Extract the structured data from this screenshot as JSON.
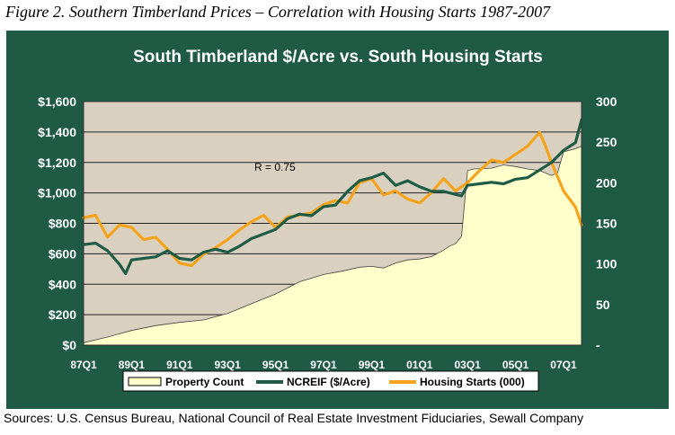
{
  "figure_caption": "Figure 2. Southern Timberland Prices – Correlation with Housing Starts 1987-2007",
  "sources": "Sources:  U.S. Census Bureau, National Council of Real Estate Investment Fiduciaries, Sewall Company",
  "colors": {
    "frame": "#1e5a44",
    "plot_bg": "#d9d0c0",
    "property_count_fill": "#ffffcc",
    "ncreif": "#1f5c46",
    "housing": "#f5a31b"
  },
  "chart_data": {
    "type": "line",
    "title": "South Timberland $/Acre vs. South Housing Starts",
    "annotation": "R = 0.75",
    "x_tick_labels": [
      "87Q1",
      "89Q1",
      "91Q1",
      "93Q1",
      "95Q1",
      "97Q1",
      "99Q1",
      "01Q1",
      "03Q1",
      "05Q1",
      "07Q1"
    ],
    "y_left": {
      "ticks": [
        "$0",
        "$200",
        "$400",
        "$600",
        "$800",
        "$1,000",
        "$1,200",
        "$1,400",
        "$1,600"
      ],
      "range": [
        0,
        1600
      ]
    },
    "y_right": {
      "ticks": [
        "-",
        "50",
        "100",
        "150",
        "200",
        "250",
        "300"
      ],
      "range": [
        0,
        300
      ]
    },
    "grid": true,
    "legend": [
      "Property Count",
      "NCREIF ($/Acre)",
      "Housing Starts (000)"
    ],
    "legend_position": "bottom",
    "series": [
      {
        "name": "Property Count",
        "kind": "area",
        "axis": "right",
        "x": [
          1987.0,
          1988.0,
          1989.0,
          1990.0,
          1991.0,
          1992.0,
          1993.0,
          1994.0,
          1995.0,
          1996.0,
          1997.0,
          1997.75,
          1998.5,
          1999.0,
          1999.5,
          2000.0,
          2000.5,
          2001.0,
          2001.5,
          2002.0,
          2002.25,
          2002.5,
          2002.75,
          2003.0,
          2003.25,
          2004.0,
          2004.5,
          2005.0,
          2005.5,
          2006.0,
          2006.5,
          2006.75,
          2007.0,
          2007.5,
          2007.75
        ],
        "y": [
          3,
          10,
          18,
          24,
          28,
          31,
          39,
          51,
          63,
          78,
          87,
          91,
          96,
          97,
          95,
          101,
          105,
          106,
          109,
          117,
          122,
          125,
          134,
          215,
          217,
          218,
          222,
          220,
          217,
          215,
          209,
          212,
          238,
          242,
          245
        ]
      },
      {
        "name": "NCREIF ($/Acre)",
        "kind": "line",
        "axis": "left",
        "x": [
          1987.0,
          1987.5,
          1988.0,
          1988.5,
          1988.75,
          1989.0,
          1989.5,
          1990.0,
          1990.5,
          1991.0,
          1991.5,
          1992.0,
          1992.5,
          1993.0,
          1993.5,
          1994.0,
          1994.5,
          1995.0,
          1995.5,
          1996.0,
          1996.5,
          1997.0,
          1997.5,
          1998.0,
          1998.5,
          1999.0,
          1999.5,
          2000.0,
          2000.5,
          2001.0,
          2001.5,
          2002.0,
          2002.5,
          2002.75,
          2003.0,
          2003.5,
          2004.0,
          2004.5,
          2005.0,
          2005.5,
          2006.0,
          2006.5,
          2007.0,
          2007.5,
          2007.75
        ],
        "y": [
          660,
          670,
          620,
          530,
          470,
          560,
          570,
          580,
          620,
          570,
          560,
          610,
          630,
          610,
          650,
          700,
          730,
          760,
          830,
          860,
          850,
          910,
          920,
          1010,
          1080,
          1100,
          1130,
          1050,
          1080,
          1040,
          1010,
          1010,
          990,
          980,
          1050,
          1060,
          1070,
          1060,
          1090,
          1100,
          1150,
          1200,
          1280,
          1330,
          1480
        ]
      },
      {
        "name": "Housing Starts (000)",
        "kind": "line",
        "axis": "right",
        "x": [
          1987.0,
          1987.5,
          1988.0,
          1988.5,
          1989.0,
          1989.5,
          1990.0,
          1990.5,
          1991.0,
          1991.5,
          1992.0,
          1992.5,
          1993.0,
          1993.5,
          1994.0,
          1994.5,
          1995.0,
          1995.5,
          1996.0,
          1996.5,
          1997.0,
          1997.5,
          1998.0,
          1998.5,
          1999.0,
          1999.5,
          2000.0,
          2000.5,
          2001.0,
          2001.5,
          2002.0,
          2002.5,
          2003.0,
          2003.5,
          2004.0,
          2004.5,
          2005.0,
          2005.5,
          2006.0,
          2006.25,
          2006.5,
          2007.0,
          2007.5,
          2007.75
        ],
        "y": [
          157,
          160,
          133,
          148,
          145,
          130,
          133,
          118,
          101,
          98,
          112,
          120,
          130,
          142,
          152,
          160,
          145,
          158,
          160,
          163,
          173,
          178,
          175,
          200,
          205,
          185,
          190,
          180,
          175,
          188,
          205,
          190,
          200,
          215,
          228,
          225,
          235,
          245,
          262,
          245,
          225,
          190,
          170,
          148
        ]
      }
    ]
  }
}
